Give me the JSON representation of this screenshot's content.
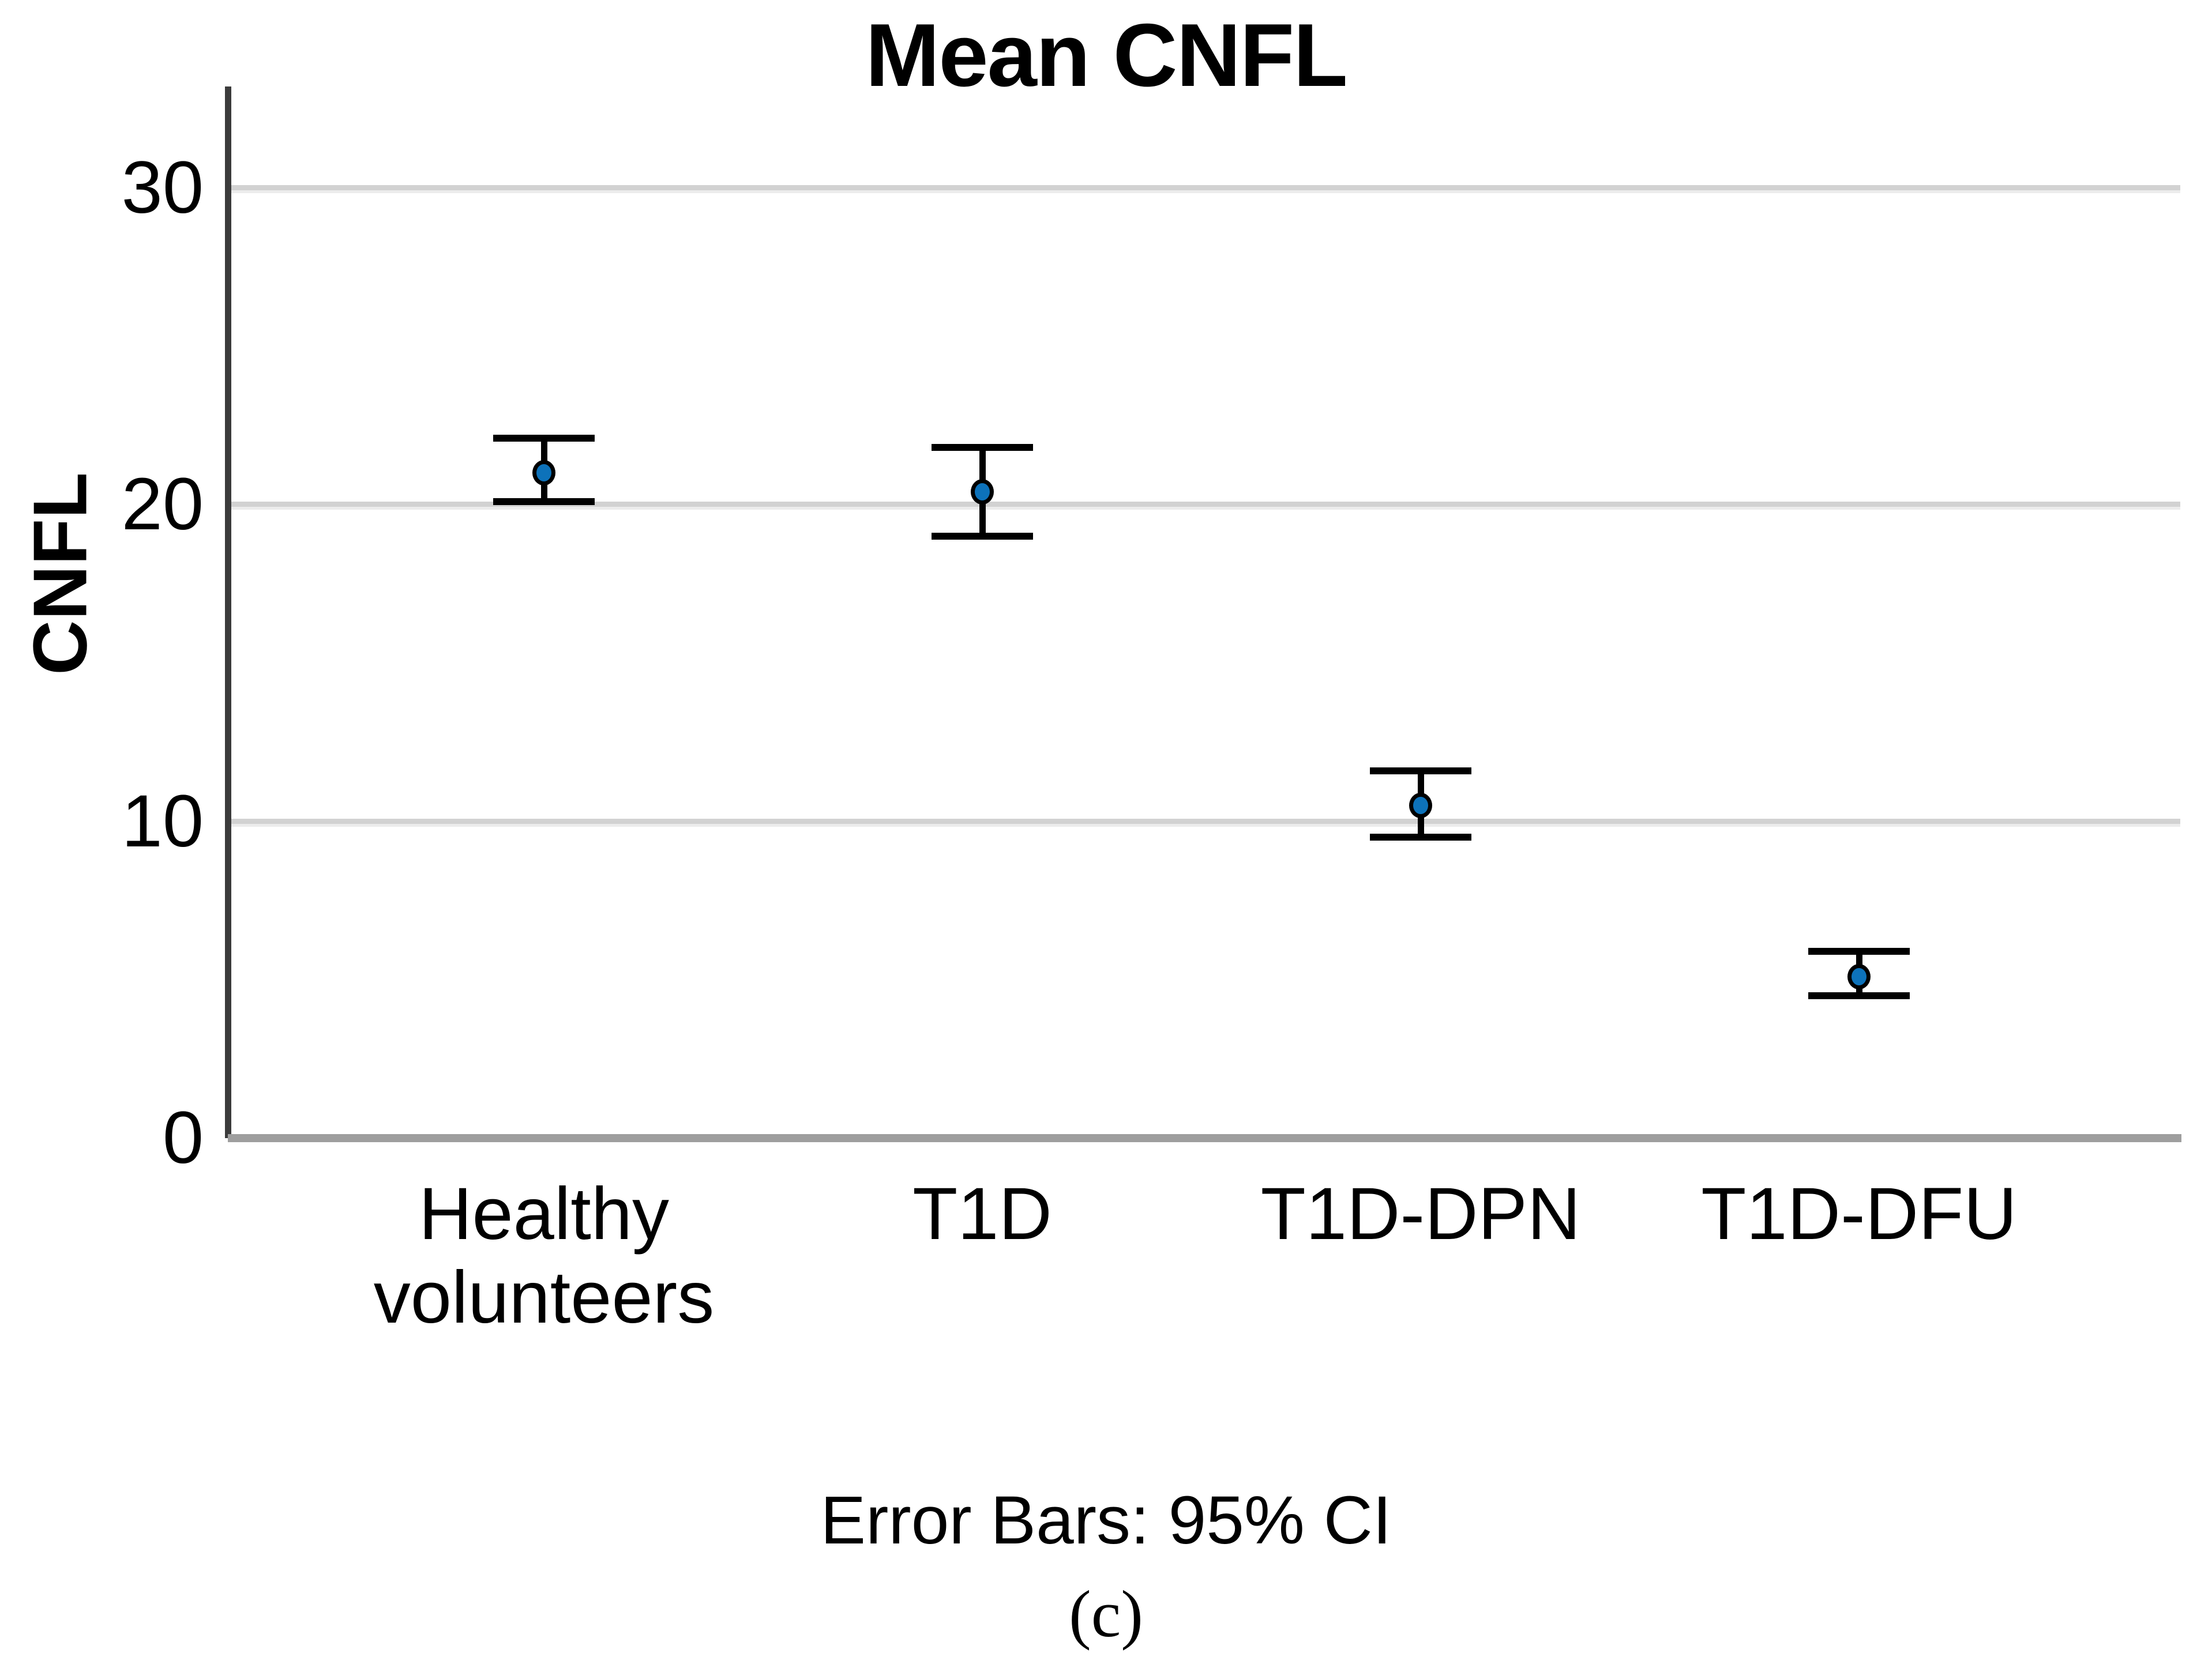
{
  "figure": {
    "panel_label": "(c)"
  },
  "chart_data": {
    "type": "scatter",
    "subtype": "point-with-error-bars",
    "title": "Mean CNFL",
    "xlabel": "",
    "ylabel": "CNFL",
    "footnote": "Error Bars: 95% CI",
    "categories": [
      "Healthy volunteers",
      "T1D",
      "T1D-DPN",
      "T1D-DFU"
    ],
    "series": [
      {
        "name": "Mean CNFL",
        "points": [
          {
            "category": "Healthy volunteers",
            "mean": 21.0,
            "ci_low": 20.1,
            "ci_high": 22.1
          },
          {
            "category": "T1D",
            "mean": 20.4,
            "ci_low": 19.0,
            "ci_high": 21.8
          },
          {
            "category": "T1D-DPN",
            "mean": 10.5,
            "ci_low": 9.5,
            "ci_high": 11.6
          },
          {
            "category": "T1D-DFU",
            "mean": 5.1,
            "ci_low": 4.5,
            "ci_high": 5.9
          }
        ]
      }
    ],
    "error_bars": "95% CI",
    "ylim": [
      0,
      33.2
    ],
    "yticks": [
      0,
      10,
      20,
      30
    ],
    "grid": true,
    "legend_position": "none",
    "colors": {
      "marker_fill": "#0d72ba",
      "marker_stroke": "#000000",
      "error_bar": "#000000",
      "gridline": "#d2d2d2",
      "y_axis": "#3b3b3b",
      "baseline": "#9e9e9e",
      "text": "#000000",
      "background": "#ffffff"
    }
  }
}
